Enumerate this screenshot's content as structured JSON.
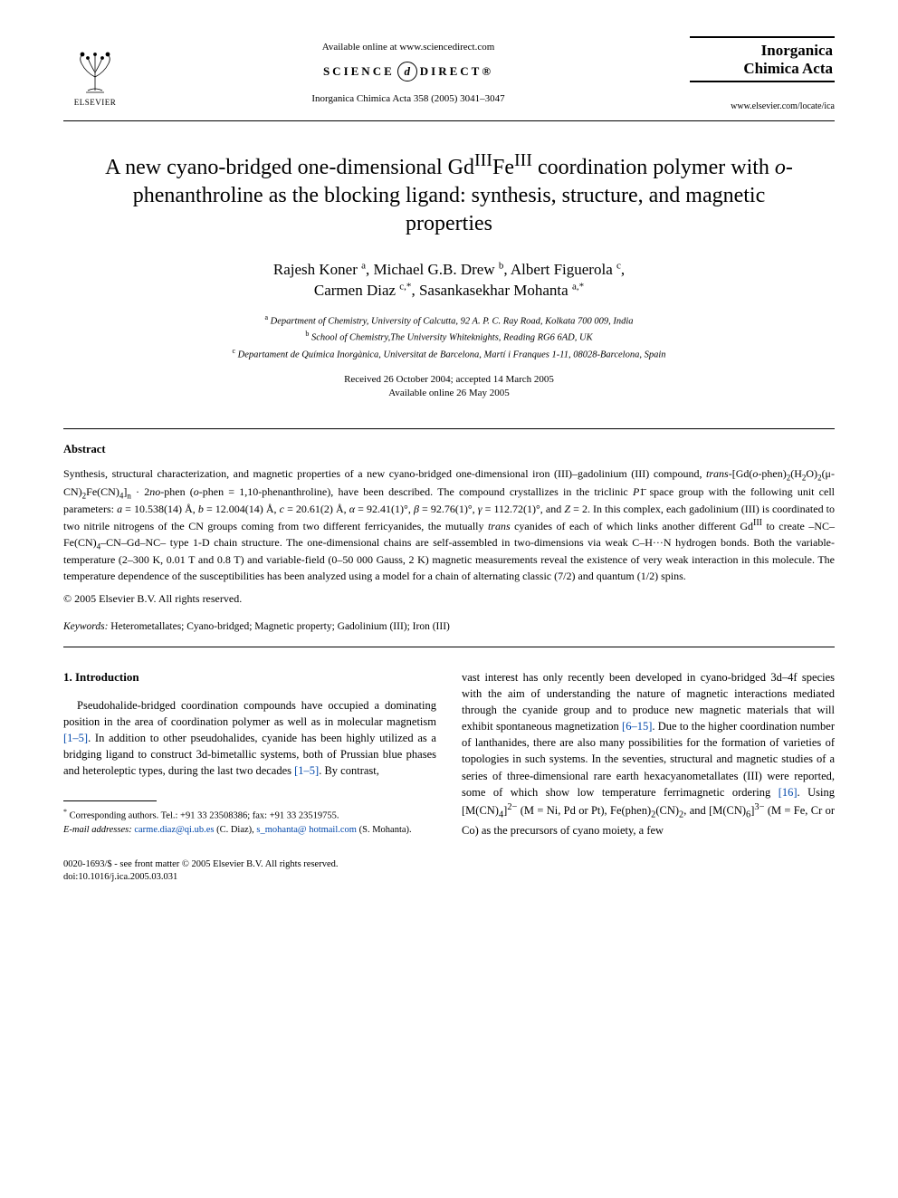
{
  "header": {
    "available": "Available online at www.sciencedirect.com",
    "sd_left": "SCIENCE",
    "sd_right": "DIRECT®",
    "citation": "Inorganica Chimica Acta 358 (2005) 3041–3047",
    "elsevier": "ELSEVIER",
    "journal_line1": "Inorganica",
    "journal_line2": "Chimica Acta",
    "journal_url": "www.elsevier.com/locate/ica"
  },
  "title": {
    "html": "A new cyano-bridged one-dimensional Gd<sup>III</sup>Fe<sup>III</sup> coordination polymer with <span class=\"italic\">o</span>-phenanthroline as the blocking ligand: synthesis, structure, and magnetic properties"
  },
  "authors": {
    "html": "Rajesh Koner <sup>a</sup>, Michael G.B. Drew <sup>b</sup>, Albert Figuerola <sup>c</sup>,<br>Carmen Diaz <sup>c,*</sup>, Sasankasekhar Mohanta <sup>a,*</sup>"
  },
  "affiliations": {
    "a": "Department of Chemistry, University of Calcutta, 92 A. P. C. Ray Road, Kolkata 700 009, India",
    "b": "School of Chemistry,The University Whiteknights, Reading RG6 6AD, UK",
    "c": "Departament de Química Inorgànica, Universitat de Barcelona, Martí i Franques 1-11, 08028-Barcelona, Spain"
  },
  "dates": {
    "received": "Received 26 October 2004; accepted 14 March 2005",
    "online": "Available online 26 May 2005"
  },
  "abstract": {
    "heading": "Abstract",
    "html": "Synthesis, structural characterization, and magnetic properties of a new cyano-bridged one-dimensional iron (III)–gadolinium (III) compound, <span class=\"italic\">trans</span>-[Gd(<span class=\"italic\">o</span>-phen)<sub>2</sub>(H<sub>2</sub>O)<sub>2</sub>(μ-CN)<sub>2</sub>Fe(CN)<sub>4</sub>]<sub>n</sub> · 2<span class=\"italic\">no</span>-phen (<span class=\"italic\">o</span>-phen = 1,10-phenanthroline), have been described. The compound crystallizes in the triclinic <span class=\"spacegroup\">P</span>1̄ space group with the following unit cell parameters: <span class=\"italic\">a</span> = 10.538(14) Å, <span class=\"italic\">b</span> = 12.004(14) Å, <span class=\"italic\">c</span> = 20.61(2) Å, <span class=\"italic\">α</span> = 92.41(1)°, <span class=\"italic\">β</span> = 92.76(1)°, <span class=\"italic\">γ</span> = 112.72(1)°, and <span class=\"italic\">Z</span> = 2. In this complex, each gadolinium (III) is coordinated to two nitrile nitrogens of the CN groups coming from two different ferricyanides, the mutually <span class=\"italic\">trans</span> cyanides of each of which links another different Gd<sup>III</sup> to create –NC–Fe(CN)<sub>4</sub>–CN–Gd–NC– type 1-D chain structure. The one-dimensional chains are self-assembled in two-dimensions via weak C–H···N hydrogen bonds. Both the variable-temperature (2–300 K, 0.01 T and 0.8 T) and variable-field (0–50 000 Gauss, 2 K) magnetic measurements reveal the existence of very weak interaction in this molecule. The temperature dependence of the susceptibilities has been analyzed using a model for a chain of alternating classic (7/2) and quantum (1/2) spins.",
    "copyright": "© 2005 Elsevier B.V. All rights reserved."
  },
  "keywords": {
    "label": "Keywords:",
    "text": " Heterometallates; Cyano-bridged; Magnetic property; Gadolinium (III); Iron (III)"
  },
  "intro": {
    "heading": "1. Introduction",
    "col1_html": "Pseudohalide-bridged coordination compounds have occupied a dominating position in the area of coordination polymer as well as in molecular magnetism <span class=\"ref-link\">[1–5]</span>. In addition to other pseudohalides, cyanide has been highly utilized as a bridging ligand to construct 3d-bimetallic systems, both of Prussian blue phases and heteroleptic types, during the last two decades <span class=\"ref-link\">[1–5]</span>. By contrast,",
    "col2_html": "vast interest has only recently been developed in cyano-bridged 3d–4f species with the aim of understanding the nature of magnetic interactions mediated through the cyanide group and to produce new magnetic materials that will exhibit spontaneous magnetization <span class=\"ref-link\">[6–15]</span>. Due to the higher coordination number of lanthanides, there are also many possibilities for the formation of varieties of topologies in such systems. In the seventies, structural and magnetic studies of a series of three-dimensional rare earth hexacyanometallates (III) were reported, some of which show low temperature ferrimagnetic ordering <span class=\"ref-link\">[16]</span>. Using [M(CN)<sub>4</sub>]<sup>2−</sup> (M = Ni, Pd or Pt), Fe(phen)<sub>2</sub>(CN)<sub>2</sub>, and [M(CN)<sub>6</sub>]<sup>3−</sup> (M = Fe, Cr or Co) as the precursors of cyano moiety, a few"
  },
  "footnotes": {
    "corr": "Corresponding authors. Tel.: +91 33 23508386; fax: +91 33 23519755.",
    "email_label": "E-mail addresses:",
    "email1": "carme.diaz@qi.ub.es",
    "email1_name": " (C. Diaz), ",
    "email2": "s_mohanta@ hotmail.com",
    "email2_name": " (S. Mohanta)."
  },
  "bottom": {
    "line1": "0020-1693/$ - see front matter © 2005 Elsevier B.V. All rights reserved.",
    "line2": "doi:10.1016/j.ica.2005.03.031"
  },
  "colors": {
    "link": "#0047ab",
    "text": "#000000",
    "bg": "#ffffff"
  }
}
